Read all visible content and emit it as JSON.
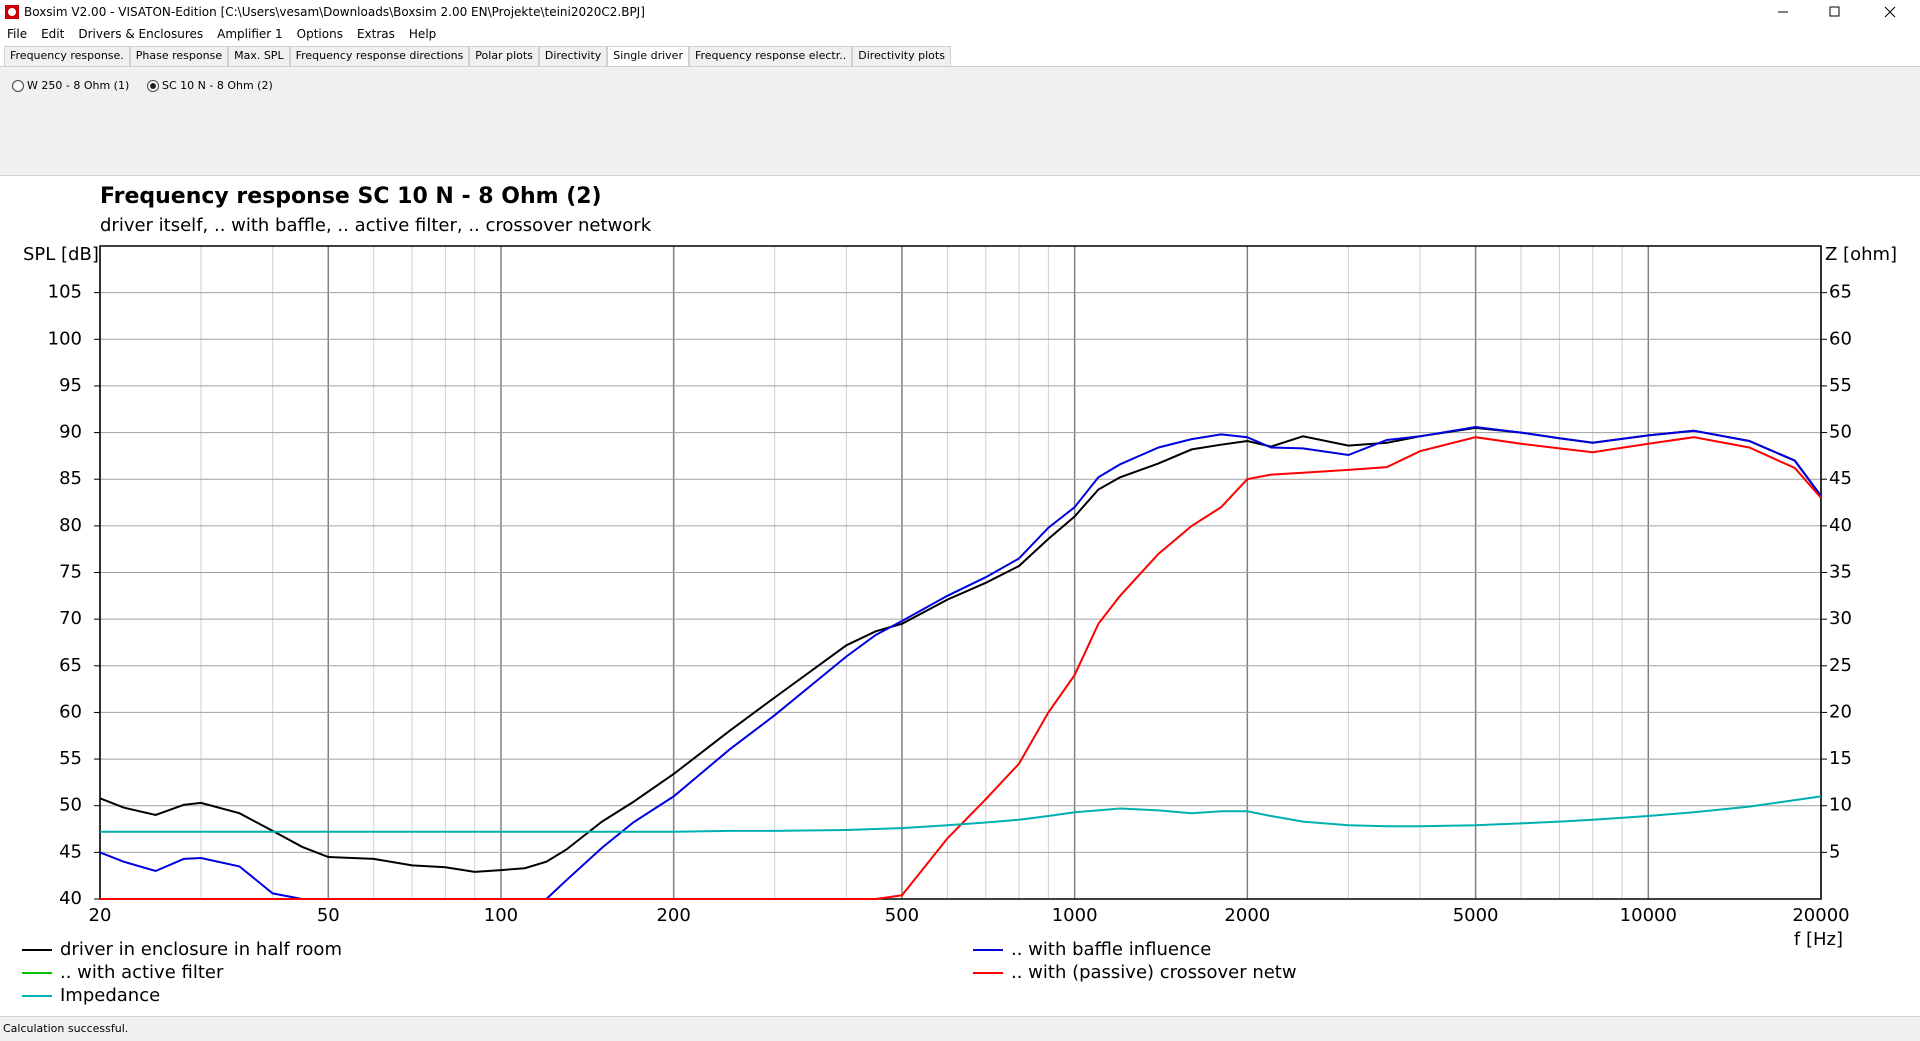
{
  "window": {
    "title": "Boxsim V2.00 - VISATON-Edition [C:\\Users\\vesam\\Downloads\\Boxsim 2.00 EN\\Projekte\\teini2020C2.BPJ]"
  },
  "menu": [
    "File",
    "Edit",
    "Drivers & Enclosures",
    "Amplifier 1",
    "Options",
    "Extras",
    "Help"
  ],
  "tabs": {
    "items": [
      "Frequency response.",
      "Phase response",
      "Max. SPL",
      "Frequency response directions",
      "Polar plots",
      "Directivity",
      "Single driver",
      "Frequency response electr..",
      "Directivity plots"
    ],
    "selected": 6
  },
  "drivers": {
    "options": [
      "W 250 - 8 Ohm (1)",
      "SC 10 N - 8 Ohm (2)"
    ],
    "selected": 1
  },
  "status": "Calculation successful.",
  "chart_data": {
    "type": "line",
    "title": "Frequency response SC 10 N - 8 Ohm (2)",
    "subtitle": "driver itself, .. with baffle, .. active filter, .. crossover network",
    "y_label": "SPL [dB]",
    "y2_label": "Z [ohm]",
    "x_label": "f [Hz]",
    "x_scale": "log",
    "grid": true,
    "legend": "bottom",
    "xlim": [
      20,
      20000
    ],
    "ylim": [
      40,
      110
    ],
    "y2lim": [
      0,
      70
    ],
    "xticks": [
      20,
      50,
      100,
      200,
      500,
      1000,
      2000,
      5000,
      10000,
      20000
    ],
    "x_minor_grid": [
      30,
      40,
      60,
      70,
      80,
      90,
      300,
      400,
      600,
      700,
      800,
      900,
      3000,
      4000,
      6000,
      7000,
      8000,
      9000
    ],
    "yticks": [
      40,
      45,
      50,
      55,
      60,
      65,
      70,
      75,
      80,
      85,
      90,
      95,
      100,
      105
    ],
    "y2ticks": [
      5,
      10,
      15,
      20,
      25,
      30,
      35,
      40,
      45,
      50,
      55,
      60,
      65
    ],
    "x": [
      20,
      22,
      25,
      28,
      30,
      35,
      40,
      45,
      50,
      60,
      70,
      80,
      90,
      100,
      110,
      120,
      130,
      150,
      170,
      200,
      250,
      300,
      400,
      450,
      500,
      600,
      700,
      800,
      900,
      1000,
      1100,
      1200,
      1400,
      1600,
      1800,
      2000,
      2200,
      2500,
      3000,
      3500,
      4000,
      5000,
      6000,
      7000,
      8000,
      10000,
      12000,
      15000,
      18000,
      20000
    ],
    "series": [
      {
        "name": "driver in enclosure in half room",
        "color": "#000000",
        "values": [
          50.8,
          49.8,
          49.0,
          50.1,
          50.3,
          49.2,
          47.3,
          45.6,
          44.5,
          44.3,
          43.6,
          43.4,
          42.9,
          43.1,
          43.3,
          44.0,
          45.3,
          48.3,
          50.4,
          53.4,
          58.0,
          61.6,
          67.2,
          68.7,
          69.5,
          72.1,
          73.9,
          75.7,
          78.6,
          81.0,
          83.9,
          85.2,
          86.7,
          88.2,
          88.7,
          89.1,
          88.5,
          89.6,
          88.6,
          88.9,
          89.6,
          90.5,
          90.0,
          89.4,
          88.9,
          89.7,
          90.2,
          89.1,
          87.0,
          83.2
        ]
      },
      {
        "name": ".. with baffle influence",
        "color": "#0000e0",
        "values": [
          45.0,
          44.0,
          43.0,
          44.3,
          44.4,
          43.5,
          40.6,
          40,
          40,
          40,
          40,
          40,
          40,
          40,
          40,
          40,
          42.0,
          45.5,
          48.2,
          51.0,
          56.0,
          59.7,
          66.0,
          68.3,
          69.8,
          72.5,
          74.5,
          76.5,
          79.8,
          82.0,
          85.2,
          86.6,
          88.4,
          89.3,
          89.8,
          89.5,
          88.4,
          88.3,
          87.6,
          89.2,
          89.6,
          90.6,
          90.0,
          89.4,
          88.9,
          89.7,
          90.2,
          89.1,
          87.0,
          83.2
        ]
      },
      {
        "name": ".. with active filter",
        "color": "#00c000",
        "values": [
          null,
          null,
          null,
          null,
          null,
          null,
          null,
          null,
          null,
          null,
          null,
          null,
          null,
          null,
          null,
          null,
          null,
          null,
          null,
          null,
          null,
          null,
          null,
          null,
          null,
          null,
          null,
          null,
          null,
          null,
          null,
          null,
          null,
          null,
          null,
          null,
          null,
          null,
          null,
          null,
          null,
          null,
          null,
          null,
          null,
          null,
          null,
          null,
          null,
          null
        ]
      },
      {
        "name": ".. with (passive) crossover netw",
        "color": "#ff0000",
        "values": [
          40,
          40,
          40,
          40,
          40,
          40,
          40,
          40,
          40,
          40,
          40,
          40,
          40,
          40,
          40,
          40,
          40,
          40,
          40,
          40,
          40,
          40,
          40,
          40,
          40.4,
          46.5,
          50.7,
          54.5,
          60.0,
          64.0,
          69.5,
          72.5,
          77.0,
          80.0,
          82.0,
          85.0,
          85.5,
          85.7,
          86.0,
          86.3,
          88.0,
          89.5,
          88.8,
          88.3,
          87.9,
          88.8,
          89.5,
          88.4,
          86.2,
          83.0
        ]
      },
      {
        "name": "Impedance",
        "color": "#00b0b0",
        "axis": "y2",
        "values": [
          7.2,
          7.2,
          7.2,
          7.2,
          7.2,
          7.2,
          7.2,
          7.2,
          7.2,
          7.2,
          7.2,
          7.2,
          7.2,
          7.2,
          7.2,
          7.2,
          7.2,
          7.2,
          7.2,
          7.2,
          7.3,
          7.3,
          7.4,
          7.5,
          7.6,
          7.9,
          8.2,
          8.5,
          8.9,
          9.3,
          9.5,
          9.7,
          9.5,
          9.2,
          9.4,
          9.4,
          8.9,
          8.3,
          7.9,
          7.8,
          7.8,
          7.9,
          8.1,
          8.3,
          8.5,
          8.9,
          9.3,
          9.9,
          10.6,
          11.0
        ]
      }
    ]
  }
}
